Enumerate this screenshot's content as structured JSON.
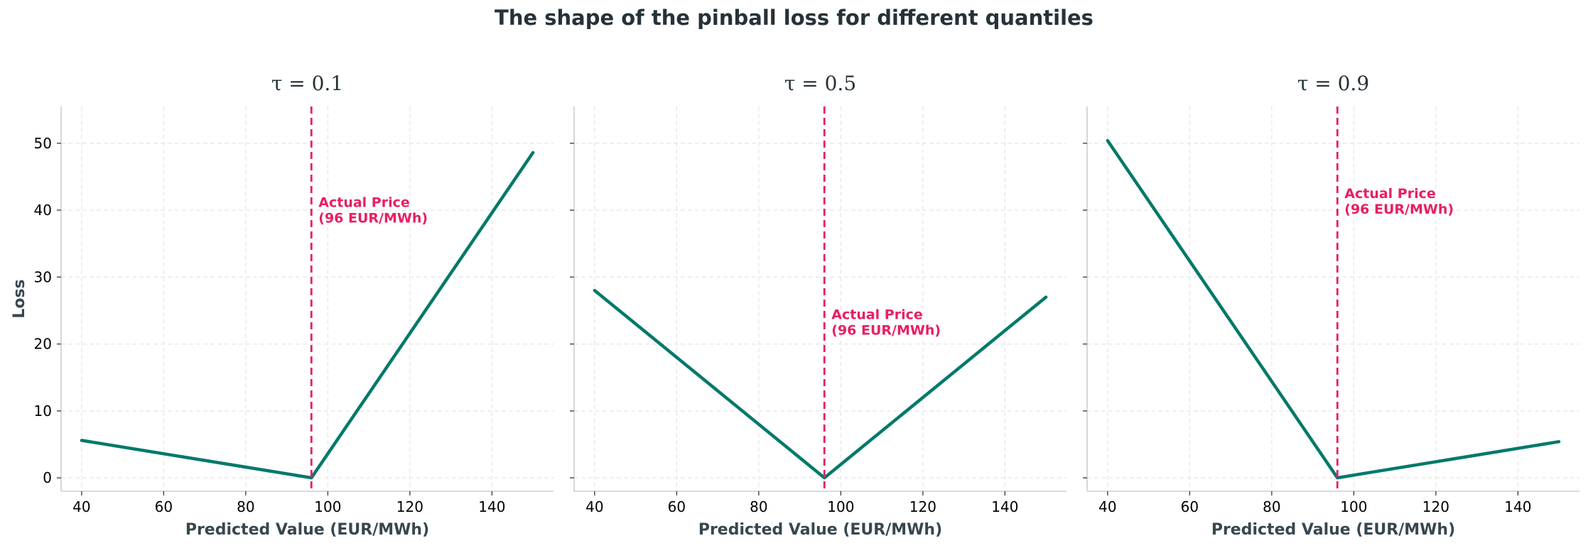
{
  "suptitle": "The shape of the pinball loss for different quantiles",
  "chart_data": [
    {
      "type": "line",
      "title": "τ = 0.1",
      "xlabel": "Predicted Value (EUR/MWh)",
      "ylabel": "Loss",
      "xlim": [
        35,
        155
      ],
      "ylim": [
        -2,
        55.5
      ],
      "xticks": [
        40,
        60,
        80,
        100,
        120,
        140
      ],
      "yticks": [
        0,
        10,
        20,
        30,
        40,
        50
      ],
      "grid": true,
      "series": [
        {
          "x": [
            40,
            96,
            150
          ],
          "y": [
            5.6,
            0,
            48.6
          ],
          "color": "#00796b"
        }
      ],
      "vline": {
        "x": 96,
        "color": "#e91e63",
        "label": "Actual Price\n(96 EUR/MWh)",
        "label_y": 40.5
      }
    },
    {
      "type": "line",
      "title": "τ = 0.5",
      "xlabel": "Predicted Value (EUR/MWh)",
      "ylabel": "",
      "xlim": [
        35,
        155
      ],
      "ylim": [
        -2,
        55.5
      ],
      "xticks": [
        40,
        60,
        80,
        100,
        120,
        140
      ],
      "yticks": [
        0,
        10,
        20,
        30,
        40,
        50
      ],
      "grid": true,
      "series": [
        {
          "x": [
            40,
            96,
            150
          ],
          "y": [
            28,
            0,
            27
          ],
          "color": "#00796b"
        }
      ],
      "vline": {
        "x": 96,
        "color": "#e91e63",
        "label": "Actual Price\n(96 EUR/MWh)",
        "label_y": 23.7
      }
    },
    {
      "type": "line",
      "title": "τ = 0.9",
      "xlabel": "Predicted Value (EUR/MWh)",
      "ylabel": "",
      "xlim": [
        35,
        155
      ],
      "ylim": [
        -2,
        55.5
      ],
      "xticks": [
        40,
        60,
        80,
        100,
        120,
        140
      ],
      "yticks": [
        0,
        10,
        20,
        30,
        40,
        50
      ],
      "grid": true,
      "series": [
        {
          "x": [
            40,
            96,
            150
          ],
          "y": [
            50.4,
            0,
            5.4
          ],
          "color": "#00796b"
        }
      ],
      "vline": {
        "x": 96,
        "color": "#e91e63",
        "label": "Actual Price\n(96 EUR/MWh)",
        "label_y": 41.8
      }
    }
  ]
}
